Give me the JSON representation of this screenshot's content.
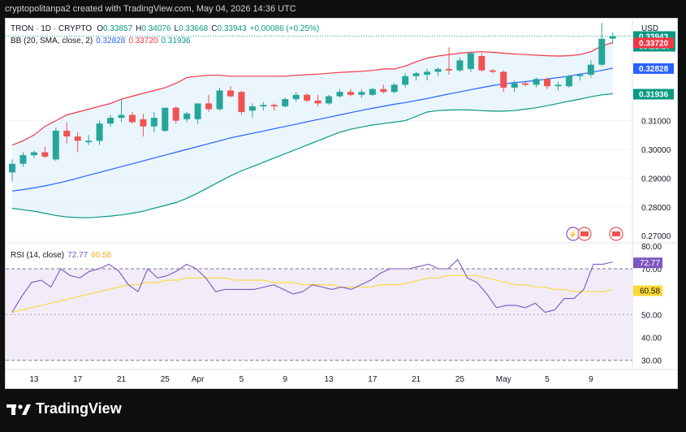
{
  "header": {
    "caption": "cryptopolitanpa2 created with TradingView.com, May 04, 2026 14:36 UTC"
  },
  "legend": {
    "symbol": "TRON · 1D · CRYPTO",
    "o_label": "O",
    "o": "0.33857",
    "h_label": "H",
    "h": "0.34076",
    "l_label": "L",
    "l": "0.33668",
    "c_label": "C",
    "c": "0.33943",
    "change": "+0.00086 (+0.25%)",
    "bb_label": "BB (20, SMA, close, 2)",
    "bb_basis": "0.32828",
    "bb_upper": "0.33720",
    "bb_lower": "0.31936",
    "rsi_label": "RSI (14, close)",
    "rsi_value": "72.77",
    "rsi_ma": "60.58"
  },
  "price_axis": {
    "currency": "USD",
    "ticks": [
      "0.31000",
      "0.30000",
      "0.29000",
      "0.28000",
      "0.27000"
    ],
    "last_price": "0.33943",
    "countdown": "09:23:37",
    "upper_label": "0.33720",
    "basis_label": "0.32828",
    "lower_label": "0.31936"
  },
  "rsi_axis": {
    "ticks": [
      "80.00",
      "70.00",
      "50.00",
      "40.00",
      "30.00"
    ],
    "value_label": "72.77",
    "ma_label": "60.58"
  },
  "time_axis": {
    "labels": [
      "13",
      "17",
      "21",
      "25",
      "Apr",
      "5",
      "9",
      "13",
      "17",
      "21",
      "25",
      "May",
      "5",
      "9"
    ]
  },
  "brand": {
    "name": "TradingView"
  },
  "colors": {
    "up": "#26a69a",
    "down": "#ef5350",
    "bb_upper": "#f23645",
    "bb_basis": "#2962ff",
    "bb_lower": "#089981",
    "rsi": "#7e57c2",
    "rsi_ma": "#fdd835",
    "bb_fill": "#e3f2fd",
    "rsi_fill": "#ede7f6"
  },
  "chart_data": {
    "type": "candlestick",
    "x_range": [
      "Mar 11",
      "May 09"
    ],
    "x_ticks": [
      "13",
      "17",
      "21",
      "25",
      "Apr",
      "5",
      "9",
      "13",
      "17",
      "21",
      "25",
      "May",
      "5",
      "9"
    ],
    "ylim": [
      0.2675,
      0.3455
    ],
    "candles": [
      {
        "date": "Mar 11",
        "o": 0.292,
        "h": 0.2965,
        "l": 0.2888,
        "c": 0.295
      },
      {
        "date": "Mar 12",
        "o": 0.295,
        "h": 0.299,
        "l": 0.294,
        "c": 0.298
      },
      {
        "date": "Mar 13",
        "o": 0.298,
        "h": 0.2995,
        "l": 0.297,
        "c": 0.299
      },
      {
        "date": "Mar 14",
        "o": 0.299,
        "h": 0.301,
        "l": 0.297,
        "c": 0.2975
      },
      {
        "date": "Mar 15",
        "o": 0.2965,
        "h": 0.3075,
        "l": 0.296,
        "c": 0.3065
      },
      {
        "date": "Mar 16",
        "o": 0.3065,
        "h": 0.3095,
        "l": 0.302,
        "c": 0.3045
      },
      {
        "date": "Mar 17",
        "o": 0.3045,
        "h": 0.306,
        "l": 0.299,
        "c": 0.303
      },
      {
        "date": "Mar 18",
        "o": 0.3025,
        "h": 0.305,
        "l": 0.3015,
        "c": 0.303
      },
      {
        "date": "Mar 19",
        "o": 0.303,
        "h": 0.31,
        "l": 0.3015,
        "c": 0.309
      },
      {
        "date": "Mar 20",
        "o": 0.309,
        "h": 0.312,
        "l": 0.308,
        "c": 0.311
      },
      {
        "date": "Mar 21",
        "o": 0.311,
        "h": 0.3175,
        "l": 0.3095,
        "c": 0.312
      },
      {
        "date": "Mar 22",
        "o": 0.312,
        "h": 0.313,
        "l": 0.309,
        "c": 0.3095
      },
      {
        "date": "Mar 23",
        "o": 0.3105,
        "h": 0.3125,
        "l": 0.3045,
        "c": 0.308
      },
      {
        "date": "Mar 24",
        "o": 0.308,
        "h": 0.313,
        "l": 0.306,
        "c": 0.311
      },
      {
        "date": "Mar 25",
        "o": 0.3065,
        "h": 0.314,
        "l": 0.306,
        "c": 0.3145
      },
      {
        "date": "Mar 26",
        "o": 0.3145,
        "h": 0.315,
        "l": 0.309,
        "c": 0.31
      },
      {
        "date": "Mar 27",
        "o": 0.3105,
        "h": 0.313,
        "l": 0.3095,
        "c": 0.3125
      },
      {
        "date": "Mar 28",
        "o": 0.3105,
        "h": 0.316,
        "l": 0.309,
        "c": 0.316
      },
      {
        "date": "Mar 29",
        "o": 0.316,
        "h": 0.319,
        "l": 0.313,
        "c": 0.314
      },
      {
        "date": "Mar 30",
        "o": 0.314,
        "h": 0.3215,
        "l": 0.3135,
        "c": 0.3205
      },
      {
        "date": "Mar 31",
        "o": 0.3205,
        "h": 0.322,
        "l": 0.318,
        "c": 0.3185
      },
      {
        "date": "Apr 1",
        "o": 0.32,
        "h": 0.3205,
        "l": 0.312,
        "c": 0.313
      },
      {
        "date": "Apr 2",
        "o": 0.3135,
        "h": 0.316,
        "l": 0.311,
        "c": 0.315
      },
      {
        "date": "Apr 3",
        "o": 0.315,
        "h": 0.3165,
        "l": 0.3135,
        "c": 0.3155
      },
      {
        "date": "Apr 4",
        "o": 0.3155,
        "h": 0.316,
        "l": 0.3135,
        "c": 0.315
      },
      {
        "date": "Apr 5",
        "o": 0.315,
        "h": 0.318,
        "l": 0.3145,
        "c": 0.3175
      },
      {
        "date": "Apr 6",
        "o": 0.3175,
        "h": 0.32,
        "l": 0.3165,
        "c": 0.319
      },
      {
        "date": "Apr 7",
        "o": 0.319,
        "h": 0.3195,
        "l": 0.3165,
        "c": 0.317
      },
      {
        "date": "Apr 8",
        "o": 0.317,
        "h": 0.319,
        "l": 0.315,
        "c": 0.316
      },
      {
        "date": "Apr 9",
        "o": 0.316,
        "h": 0.319,
        "l": 0.3155,
        "c": 0.3185
      },
      {
        "date": "Apr 10",
        "o": 0.3185,
        "h": 0.321,
        "l": 0.318,
        "c": 0.32
      },
      {
        "date": "Apr 11",
        "o": 0.32,
        "h": 0.321,
        "l": 0.3185,
        "c": 0.319
      },
      {
        "date": "Apr 12",
        "o": 0.319,
        "h": 0.321,
        "l": 0.318,
        "c": 0.32
      },
      {
        "date": "Apr 13",
        "o": 0.319,
        "h": 0.3215,
        "l": 0.3185,
        "c": 0.321
      },
      {
        "date": "Apr 14",
        "o": 0.321,
        "h": 0.3225,
        "l": 0.3195,
        "c": 0.32
      },
      {
        "date": "Apr 15",
        "o": 0.32,
        "h": 0.323,
        "l": 0.3195,
        "c": 0.3225
      },
      {
        "date": "Apr 16",
        "o": 0.3225,
        "h": 0.3265,
        "l": 0.3215,
        "c": 0.3255
      },
      {
        "date": "Apr 17",
        "o": 0.3255,
        "h": 0.327,
        "l": 0.324,
        "c": 0.3265
      },
      {
        "date": "Apr 18",
        "o": 0.326,
        "h": 0.328,
        "l": 0.324,
        "c": 0.327
      },
      {
        "date": "Apr 19",
        "o": 0.327,
        "h": 0.3285,
        "l": 0.3255,
        "c": 0.328
      },
      {
        "date": "Apr 20",
        "o": 0.328,
        "h": 0.3355,
        "l": 0.326,
        "c": 0.3275
      },
      {
        "date": "Apr 21",
        "o": 0.3275,
        "h": 0.332,
        "l": 0.327,
        "c": 0.331
      },
      {
        "date": "Apr 22",
        "o": 0.328,
        "h": 0.334,
        "l": 0.327,
        "c": 0.3335
      },
      {
        "date": "Apr 23",
        "o": 0.3325,
        "h": 0.3335,
        "l": 0.327,
        "c": 0.3275
      },
      {
        "date": "Apr 24",
        "o": 0.3275,
        "h": 0.328,
        "l": 0.3265,
        "c": 0.327
      },
      {
        "date": "Apr 25",
        "o": 0.327,
        "h": 0.3275,
        "l": 0.32,
        "c": 0.3215
      },
      {
        "date": "Apr 26",
        "o": 0.3215,
        "h": 0.324,
        "l": 0.32,
        "c": 0.323
      },
      {
        "date": "Apr 27",
        "o": 0.323,
        "h": 0.3235,
        "l": 0.322,
        "c": 0.3225
      },
      {
        "date": "Apr 28",
        "o": 0.3225,
        "h": 0.325,
        "l": 0.3215,
        "c": 0.3245
      },
      {
        "date": "Apr 29",
        "o": 0.3245,
        "h": 0.325,
        "l": 0.321,
        "c": 0.322
      },
      {
        "date": "Apr 30",
        "o": 0.322,
        "h": 0.3235,
        "l": 0.3205,
        "c": 0.3225
      },
      {
        "date": "May 1",
        "o": 0.322,
        "h": 0.326,
        "l": 0.3215,
        "c": 0.3255
      },
      {
        "date": "May 2",
        "o": 0.3255,
        "h": 0.3265,
        "l": 0.324,
        "c": 0.326
      },
      {
        "date": "May 3",
        "o": 0.326,
        "h": 0.331,
        "l": 0.325,
        "c": 0.3295
      },
      {
        "date": "May 4",
        "o": 0.3295,
        "h": 0.344,
        "l": 0.329,
        "c": 0.3385
      },
      {
        "date": "May 4b",
        "o": 0.33857,
        "h": 0.34076,
        "l": 0.33668,
        "c": 0.33943
      }
    ],
    "bb_upper": [
      0.3015,
      0.303,
      0.305,
      0.308,
      0.31,
      0.312,
      0.313,
      0.314,
      0.315,
      0.316,
      0.3175,
      0.3185,
      0.3195,
      0.3205,
      0.3215,
      0.323,
      0.325,
      0.3255,
      0.3258,
      0.3258,
      0.3255,
      0.3255,
      0.3255,
      0.3255,
      0.3255,
      0.3255,
      0.3258,
      0.326,
      0.3262,
      0.3265,
      0.3268,
      0.327,
      0.3272,
      0.3275,
      0.328,
      0.328,
      0.329,
      0.3305,
      0.3318,
      0.3325,
      0.333,
      0.3335,
      0.3338,
      0.334,
      0.3338,
      0.3335,
      0.3332,
      0.333,
      0.3328,
      0.3326,
      0.3325,
      0.3326,
      0.333,
      0.334,
      0.336,
      0.3372
    ],
    "bb_basis": [
      0.2855,
      0.286,
      0.2866,
      0.2873,
      0.2881,
      0.289,
      0.29,
      0.291,
      0.292,
      0.293,
      0.294,
      0.295,
      0.296,
      0.297,
      0.298,
      0.299,
      0.3,
      0.301,
      0.302,
      0.303,
      0.304,
      0.3048,
      0.3056,
      0.3064,
      0.3072,
      0.308,
      0.3088,
      0.3096,
      0.3104,
      0.3112,
      0.312,
      0.3128,
      0.3136,
      0.3143,
      0.315,
      0.3157,
      0.3163,
      0.317,
      0.3177,
      0.3185,
      0.3193,
      0.32,
      0.3208,
      0.3215,
      0.3222,
      0.3228,
      0.3232,
      0.3236,
      0.324,
      0.3245,
      0.325,
      0.3255,
      0.3262,
      0.3268,
      0.3275,
      0.3283
    ],
    "bb_lower": [
      0.2795,
      0.279,
      0.2785,
      0.2778,
      0.277,
      0.2765,
      0.2763,
      0.2762,
      0.2765,
      0.2768,
      0.2772,
      0.2778,
      0.2785,
      0.2795,
      0.2805,
      0.2815,
      0.283,
      0.2848,
      0.2868,
      0.2888,
      0.2908,
      0.2925,
      0.294,
      0.2955,
      0.297,
      0.2985,
      0.3,
      0.3015,
      0.303,
      0.3045,
      0.306,
      0.307,
      0.3078,
      0.3085,
      0.309,
      0.3095,
      0.31,
      0.3115,
      0.313,
      0.3135,
      0.3137,
      0.3138,
      0.3137,
      0.3135,
      0.3133,
      0.3133,
      0.3135,
      0.314,
      0.3145,
      0.3152,
      0.316,
      0.3168,
      0.3175,
      0.3183,
      0.319,
      0.3194
    ],
    "rsi_ylim": [
      26,
      81
    ],
    "rsi": [
      51,
      58,
      64,
      65,
      62,
      70,
      67,
      66,
      69,
      70,
      72,
      69,
      63,
      60,
      70,
      66,
      67,
      69,
      72,
      70,
      66,
      60,
      61,
      61,
      61,
      61,
      62,
      63,
      61,
      59,
      60,
      63,
      62,
      61,
      62,
      61,
      63,
      65,
      68,
      70,
      70,
      70,
      71,
      72,
      70,
      70,
      74,
      66,
      64,
      59,
      53,
      54,
      54,
      53,
      55,
      51,
      52,
      57,
      57,
      61,
      72,
      72,
      73
    ],
    "rsi_ma": [
      51,
      52,
      53,
      54,
      55,
      56,
      57,
      58,
      59,
      60,
      61,
      62,
      63,
      63,
      64,
      64,
      65,
      65,
      66,
      66,
      66,
      66,
      66,
      65,
      65,
      65,
      65,
      64,
      64,
      64,
      63,
      63,
      63,
      63,
      62,
      62,
      62,
      62,
      63,
      63,
      63,
      64,
      65,
      66,
      66,
      67,
      67,
      67,
      67,
      66,
      65,
      64,
      63,
      63,
      62,
      62,
      61,
      61,
      60,
      60,
      60,
      60,
      61
    ]
  }
}
